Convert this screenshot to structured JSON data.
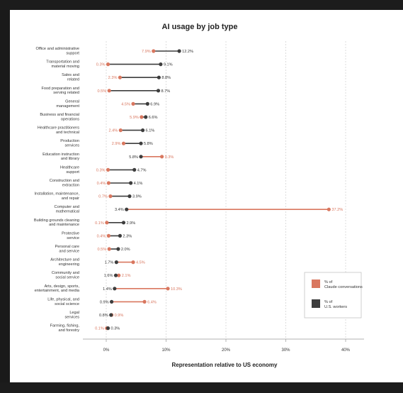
{
  "chart_data": {
    "type": "dumbbell",
    "title": "AI usage by job type",
    "xlabel": "Representation relative to US economy",
    "ylabel": "",
    "xlim": [
      -3,
      43
    ],
    "xticks": [
      "0%",
      "10%",
      "20%",
      "30%",
      "40%"
    ],
    "xtick_values": [
      0,
      10,
      20,
      30,
      40
    ],
    "grid": "vertical dashed",
    "legend_position": "bottom-right",
    "colors": {
      "claude": "#d9775f",
      "workers": "#3d3d3d",
      "connector": "#3d3d3d",
      "grid": "#d4d4d4"
    },
    "series": [
      {
        "name": "% of Claude conversations",
        "key": "claude"
      },
      {
        "name": "% of U.S. workers",
        "key": "workers"
      }
    ],
    "categories": [
      {
        "label": [
          "Office and administrative",
          "support"
        ],
        "claude": 7.9,
        "workers": 12.2
      },
      {
        "label": [
          "Transportation and",
          "material moving"
        ],
        "claude": 0.3,
        "workers": 9.1
      },
      {
        "label": [
          "Sales and",
          "related"
        ],
        "claude": 2.3,
        "workers": 8.8
      },
      {
        "label": [
          "Food preparation and",
          "serving related"
        ],
        "claude": 0.5,
        "workers": 8.7
      },
      {
        "label": [
          "General",
          "management"
        ],
        "claude": 4.5,
        "workers": 6.9
      },
      {
        "label": [
          "Business and financial",
          "operations"
        ],
        "claude": 5.9,
        "workers": 6.6
      },
      {
        "label": [
          "Healthcare practitioners",
          "and technical"
        ],
        "claude": 2.4,
        "workers": 6.1
      },
      {
        "label": [
          "Production",
          "services"
        ],
        "claude": 2.9,
        "workers": 5.8
      },
      {
        "label": [
          "Education instruction",
          "and library"
        ],
        "claude": 9.3,
        "workers": 5.8
      },
      {
        "label": [
          "Healthcare",
          "support"
        ],
        "claude": 0.3,
        "workers": 4.7
      },
      {
        "label": [
          "Construction and",
          "extraction"
        ],
        "claude": 0.4,
        "workers": 4.1
      },
      {
        "label": [
          "Installation, maintenance,",
          "and repair"
        ],
        "claude": 0.7,
        "workers": 3.9
      },
      {
        "label": [
          "Computer and",
          "mathematical"
        ],
        "claude": 37.2,
        "workers": 3.4
      },
      {
        "label": [
          "Building grounds cleaning",
          "and maintenance"
        ],
        "claude": 0.1,
        "workers": 2.9
      },
      {
        "label": [
          "Protective",
          "service"
        ],
        "claude": 0.4,
        "workers": 2.3
      },
      {
        "label": [
          "Personal care",
          "and service"
        ],
        "claude": 0.5,
        "workers": 2.0
      },
      {
        "label": [
          "Architecture and",
          "engineering"
        ],
        "claude": 4.5,
        "workers": 1.7
      },
      {
        "label": [
          "Community and",
          "social service"
        ],
        "claude": 2.1,
        "workers": 1.6
      },
      {
        "label": [
          "Arts, design, sports,",
          "entertainment, and media"
        ],
        "claude": 10.3,
        "workers": 1.4
      },
      {
        "label": [
          "Life, physical, and",
          "social science"
        ],
        "claude": 6.4,
        "workers": 0.9
      },
      {
        "label": [
          "Legal",
          "services"
        ],
        "claude": 0.9,
        "workers": 0.8
      },
      {
        "label": [
          "Farming, fishing,",
          "and forestry"
        ],
        "claude": 0.1,
        "workers": 0.3
      }
    ],
    "value_labels": {
      "claude": [
        "7.9%",
        "0.3%",
        "2.3%",
        "0.5%",
        "4.5%",
        "5.9%",
        "2.4%",
        "2.9%",
        "9.3%",
        "0.3%",
        "0.4%",
        "0.7%",
        "37.2%",
        "0.1%",
        "0.4%",
        "0.5%",
        "4.5%",
        "2.1%",
        "10.3%",
        "6.4%",
        "0.9%",
        "0.1%"
      ],
      "workers": [
        "12.2%",
        "9.1%",
        "8.8%",
        "8.7%",
        "6.9%",
        "6.6%",
        "6.1%",
        "5.8%",
        "5.8%",
        "4.7%",
        "4.1%",
        "3.9%",
        "3.4%",
        "2.9%",
        "2.3%",
        "2.0%",
        "1.7%",
        "1.6%",
        "1.4%",
        "0.9%",
        "0.8%",
        "0.3%"
      ]
    }
  }
}
